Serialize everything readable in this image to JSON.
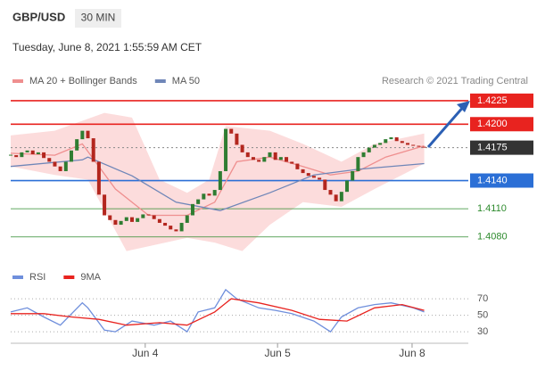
{
  "header": {
    "symbol": "GBP/USD",
    "timeframe": "30 MIN",
    "timestamp": "Tuesday, June 8, 2021 1:55:59 AM CET",
    "credit": "Research © 2021 Trading Central"
  },
  "chart_data": [
    {
      "type": "candlestick",
      "up_color": "#2f7d32",
      "down_color": "#b3261e",
      "close": [
        1.4167,
        1.4165,
        1.417,
        1.4172,
        1.4168,
        1.417,
        1.4164,
        1.416,
        1.4155,
        1.415,
        1.416,
        1.4172,
        1.4184,
        1.4193,
        1.4185,
        1.416,
        1.4125,
        1.4103,
        1.4098,
        1.4093,
        1.4097,
        1.4101,
        1.4096,
        1.41,
        1.4104,
        1.4103,
        1.4099,
        1.4095,
        1.4092,
        1.4088,
        1.4086,
        1.4095,
        1.4103,
        1.4115,
        1.412,
        1.4126,
        1.4124,
        1.413,
        1.415,
        1.4195,
        1.419,
        1.4178,
        1.417,
        1.4165,
        1.4162,
        1.416,
        1.4165,
        1.417,
        1.4162,
        1.4165,
        1.416,
        1.4158,
        1.4152,
        1.4148,
        1.4145,
        1.4143,
        1.4141,
        1.413,
        1.4125,
        1.4118,
        1.4128,
        1.414,
        1.415,
        1.4165,
        1.417,
        1.4175,
        1.4178,
        1.418,
        1.4184,
        1.4186,
        1.4182,
        1.418,
        1.4178,
        1.4177,
        1.4176,
        1.4175
      ],
      "series": [
        {
          "name": "MA 20 + Bollinger Bands",
          "color": "#ef8f8f",
          "x": [
            0,
            8,
            13,
            19,
            25,
            32,
            37,
            41,
            47,
            53,
            58,
            63,
            68,
            75
          ],
          "values": [
            1.4169,
            1.4167,
            1.4179,
            1.4131,
            1.4103,
            1.4103,
            1.4117,
            1.416,
            1.4165,
            1.4155,
            1.4146,
            1.415,
            1.4165,
            1.4177
          ]
        },
        {
          "name": "MA 50",
          "color": "#6f86b8",
          "x": [
            0,
            13,
            14,
            22,
            30,
            38,
            47,
            55,
            63,
            75
          ],
          "values": [
            1.4155,
            1.4162,
            1.4165,
            1.4145,
            1.4117,
            1.4108,
            1.4127,
            1.4146,
            1.4152,
            1.4158
          ]
        }
      ],
      "bands": {
        "color": "#fbd3d3",
        "upper": {
          "x": [
            0,
            8,
            17,
            22,
            27,
            32,
            36,
            39,
            47,
            53,
            60,
            66,
            75
          ],
          "values": [
            1.4188,
            1.4193,
            1.4212,
            1.4207,
            1.4141,
            1.4127,
            1.4141,
            1.4198,
            1.4193,
            1.4179,
            1.416,
            1.4179,
            1.419
          ]
        },
        "lower": {
          "x": [
            0,
            8,
            14,
            21,
            25,
            32,
            37,
            42,
            47,
            53,
            60,
            66,
            75
          ],
          "values": [
            1.4155,
            1.4146,
            1.4141,
            1.4065,
            1.407,
            1.4079,
            1.4074,
            1.4065,
            1.4093,
            1.4117,
            1.4112,
            1.4131,
            1.4158
          ]
        }
      },
      "levels": [
        {
          "value": 1.4225,
          "label": "1.4225",
          "color": "#e8231f",
          "box": true
        },
        {
          "value": 1.42,
          "label": "1.4200",
          "color": "#e8231f",
          "box": true
        },
        {
          "value": 1.4175,
          "label": "1.4175",
          "color": "#333333",
          "box": true,
          "dotted": true
        },
        {
          "value": 1.414,
          "label": "1.4140",
          "color": "#2b6fd6",
          "box": true
        },
        {
          "value": 1.411,
          "label": "1.4110",
          "color": "#2e8b2e",
          "box": false
        },
        {
          "value": 1.408,
          "label": "1.4080",
          "color": "#2e8b2e",
          "box": false
        }
      ],
      "xlim": [
        0,
        83
      ],
      "xticks": [
        {
          "value": 24.4,
          "label": "Jun 4"
        },
        {
          "value": 48.4,
          "label": "Jun 5"
        },
        {
          "value": 72.8,
          "label": "Jun 8"
        }
      ],
      "ylim": [
        1.4057,
        1.4242
      ]
    },
    {
      "type": "line",
      "series": [
        {
          "name": "RSI",
          "color": "#6f8fdc",
          "x": [
            0,
            3,
            6,
            9,
            13,
            14,
            17,
            19,
            22,
            26,
            29,
            32,
            34,
            37,
            39,
            41,
            45,
            48,
            51,
            55,
            58,
            60,
            63,
            66,
            69,
            73,
            75
          ],
          "values": [
            54,
            59,
            48,
            38,
            65,
            59,
            32,
            30,
            43,
            38,
            43,
            30,
            54,
            59,
            81,
            70,
            59,
            56,
            52,
            43,
            30,
            48,
            59,
            63,
            65,
            59,
            54
          ]
        },
        {
          "name": "9MA",
          "color": "#e8231f",
          "x": [
            0,
            6,
            11,
            16,
            21,
            27,
            32,
            37,
            40,
            45,
            51,
            56,
            61,
            66,
            71,
            75
          ],
          "values": [
            52,
            52,
            48,
            45,
            38,
            41,
            38,
            54,
            70,
            65,
            56,
            45,
            43,
            59,
            63,
            56
          ]
        }
      ],
      "xlim": [
        0,
        83
      ],
      "ylim": [
        15,
        82
      ],
      "yticks": [
        30,
        50,
        70
      ]
    }
  ]
}
